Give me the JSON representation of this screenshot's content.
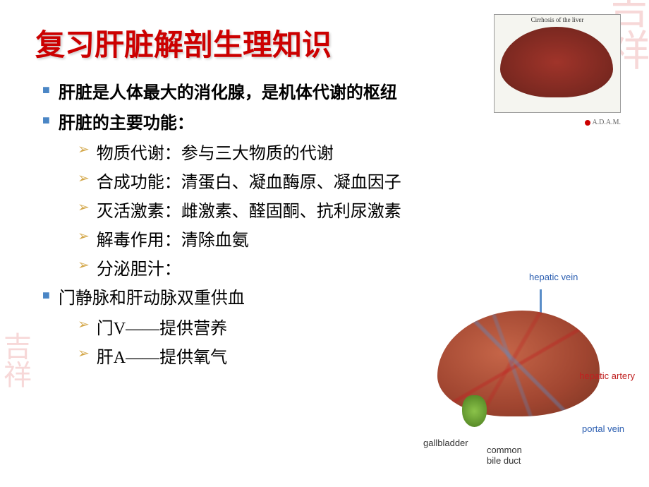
{
  "title": "复习肝脏解剖生理知识",
  "bullets": [
    {
      "level": 1,
      "text": "肝脏是人体最大的消化腺，是机体代谢的枢纽",
      "bold": true
    },
    {
      "level": 1,
      "text": "肝脏的主要功能：",
      "bold": true
    },
    {
      "level": 2,
      "text": "物质代谢：参与三大物质的代谢"
    },
    {
      "level": 2,
      "text": "合成功能：清蛋白、凝血酶原、凝血因子"
    },
    {
      "level": 2,
      "text": "灭活激素：雌激素、醛固酮、抗利尿激素"
    },
    {
      "level": 2,
      "text": "解毒作用：清除血氨"
    },
    {
      "level": 2,
      "text": "分泌胆汁："
    },
    {
      "level": 1,
      "text": "门静脉和肝动脉双重供血"
    },
    {
      "level": 2,
      "text": "门V――提供营养"
    },
    {
      "level": 2,
      "text": "肝A――提供氧气"
    }
  ],
  "top_image": {
    "caption": "Cirrhosis of the liver",
    "credit": "A.D.A.M."
  },
  "diagram_labels": {
    "hepatic_vein": "hepatic vein",
    "hepatic_artery": "hepatic artery",
    "portal_vein": "portal vein",
    "gallbladder": "gallbladder",
    "common_bile_duct": "common\nbile duct"
  },
  "colors": {
    "title": "#cc0000",
    "bullet1_marker": "#4a86c5",
    "bullet2_marker": "#d4a84b",
    "text": "#000000",
    "vein_label": "#2a5db0",
    "artery_label": "#c02020"
  },
  "typography": {
    "title_size": 42,
    "body_size": 24,
    "label_size": 13
  }
}
